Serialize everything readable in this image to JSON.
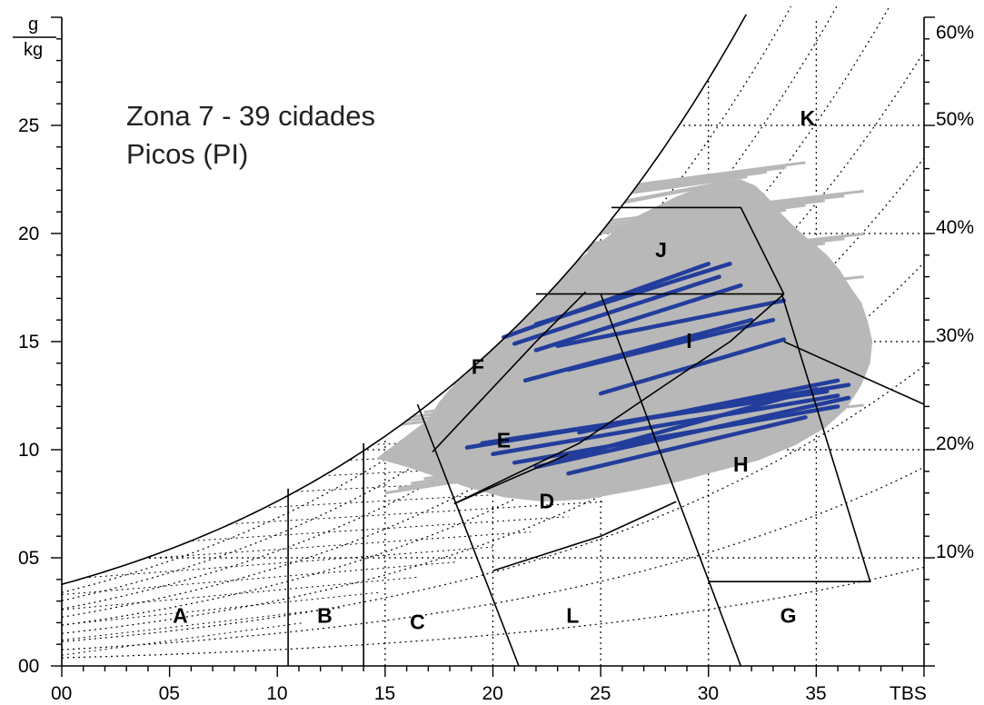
{
  "chart_data": {
    "type": "scatter",
    "title": "Zona 7 - 39 cidades",
    "subtitle": "Picos (PI)",
    "xlabel": "TBS",
    "ylabel_num": "g",
    "ylabel_den": "kg",
    "xlim": [
      0,
      40
    ],
    "ylim": [
      0,
      30
    ],
    "x_ticks": [
      {
        "value": 0,
        "label": "00"
      },
      {
        "value": 5,
        "label": "05"
      },
      {
        "value": 10,
        "label": "10"
      },
      {
        "value": 15,
        "label": "15"
      },
      {
        "value": 20,
        "label": "20"
      },
      {
        "value": 25,
        "label": "25"
      },
      {
        "value": 30,
        "label": "30"
      },
      {
        "value": 35,
        "label": "35"
      }
    ],
    "y_ticks": [
      {
        "value": 0,
        "label": "00"
      },
      {
        "value": 5,
        "label": "05"
      },
      {
        "value": 10,
        "label": "10"
      },
      {
        "value": 15,
        "label": "15"
      },
      {
        "value": 20,
        "label": "20"
      },
      {
        "value": 25,
        "label": "25"
      }
    ],
    "rh_labels": [
      {
        "value": 10,
        "label": "10%"
      },
      {
        "value": 20,
        "label": "20%"
      },
      {
        "value": 30,
        "label": "30%"
      },
      {
        "value": 40,
        "label": "40%"
      },
      {
        "value": 50,
        "label": "50%"
      },
      {
        "value": 60,
        "label": "60%"
      }
    ],
    "zones": [
      {
        "label": "A",
        "x": 5.5,
        "y": 2.0
      },
      {
        "label": "B",
        "x": 12.2,
        "y": 2.0
      },
      {
        "label": "C",
        "x": 16.5,
        "y": 1.7
      },
      {
        "label": "L",
        "x": 23.7,
        "y": 2.0
      },
      {
        "label": "G",
        "x": 33.7,
        "y": 2.0
      },
      {
        "label": "D",
        "x": 22.5,
        "y": 7.3
      },
      {
        "label": "E",
        "x": 20.5,
        "y": 10.1
      },
      {
        "label": "F",
        "x": 19.3,
        "y": 13.5
      },
      {
        "label": "H",
        "x": 31.5,
        "y": 9.0
      },
      {
        "label": "I",
        "x": 29.1,
        "y": 14.7
      },
      {
        "label": "J",
        "x": 27.8,
        "y": 18.9
      },
      {
        "label": "K",
        "x": 34.6,
        "y": 25.0
      }
    ],
    "gray_points": [
      [
        17.0,
        11.4
      ],
      [
        17.5,
        12.2
      ],
      [
        18.0,
        12.8
      ],
      [
        18.8,
        13.5
      ],
      [
        19.5,
        14.3
      ],
      [
        20.3,
        15.0
      ],
      [
        21.0,
        15.8
      ],
      [
        21.8,
        16.6
      ],
      [
        22.5,
        17.6
      ],
      [
        23.5,
        18.4
      ],
      [
        24.5,
        19.2
      ],
      [
        25.5,
        20.0
      ],
      [
        26.5,
        20.7
      ],
      [
        27.5,
        21.2
      ],
      [
        28.5,
        21.7
      ],
      [
        29.5,
        22.1
      ],
      [
        30.5,
        22.4
      ],
      [
        31.5,
        22.5
      ],
      [
        32.2,
        22.2
      ],
      [
        32.8,
        21.6
      ],
      [
        33.4,
        20.9
      ],
      [
        34.1,
        20.2
      ],
      [
        34.8,
        19.6
      ],
      [
        35.5,
        19.0
      ],
      [
        36.1,
        18.3
      ],
      [
        36.6,
        17.5
      ],
      [
        37.1,
        16.8
      ],
      [
        37.4,
        15.9
      ],
      [
        37.6,
        15.0
      ],
      [
        37.5,
        14.0
      ],
      [
        37.1,
        13.0
      ],
      [
        36.4,
        11.9
      ],
      [
        35.4,
        11.0
      ],
      [
        34.0,
        10.2
      ],
      [
        32.3,
        9.5
      ],
      [
        30.4,
        9.0
      ],
      [
        28.5,
        8.5
      ],
      [
        26.5,
        8.1
      ],
      [
        24.3,
        7.7
      ],
      [
        22.3,
        7.6
      ],
      [
        20.5,
        7.8
      ],
      [
        19.0,
        8.2
      ],
      [
        17.5,
        8.7
      ],
      [
        16.0,
        9.2
      ],
      [
        14.6,
        9.6
      ],
      [
        15.2,
        10.2
      ],
      [
        16.0,
        10.7
      ],
      [
        20.0,
        10.5
      ],
      [
        23.0,
        12.0
      ],
      [
        26.0,
        14.0
      ],
      [
        29.0,
        16.0
      ],
      [
        32.0,
        18.0
      ],
      [
        22.0,
        10.0
      ],
      [
        25.0,
        12.0
      ],
      [
        28.0,
        13.0
      ],
      [
        31.0,
        14.5
      ],
      [
        34.0,
        15.5
      ],
      [
        24.0,
        15.0
      ],
      [
        27.0,
        17.5
      ],
      [
        30.0,
        19.5
      ],
      [
        33.0,
        17.0
      ],
      [
        35.0,
        13.5
      ],
      [
        21.0,
        13.0
      ]
    ],
    "blue_segments": [
      [
        [
          20.5,
          15.2
        ],
        [
          30.0,
          18.6
        ]
      ],
      [
        [
          21.0,
          14.9
        ],
        [
          30.5,
          18.0
        ]
      ],
      [
        [
          22.0,
          15.8
        ],
        [
          31.0,
          18.6
        ]
      ],
      [
        [
          22.0,
          14.6
        ],
        [
          31.5,
          17.6
        ]
      ],
      [
        [
          23.0,
          14.8
        ],
        [
          33.5,
          16.9
        ]
      ],
      [
        [
          21.5,
          13.2
        ],
        [
          32.0,
          16.0
        ]
      ],
      [
        [
          23.5,
          13.7
        ],
        [
          33.0,
          16.0
        ]
      ],
      [
        [
          25.0,
          12.6
        ],
        [
          33.5,
          15.1
        ]
      ],
      [
        [
          18.8,
          10.1
        ],
        [
          36.5,
          13.0
        ]
      ],
      [
        [
          19.5,
          10.3
        ],
        [
          35.5,
          12.7
        ]
      ],
      [
        [
          20.0,
          9.8
        ],
        [
          36.0,
          12.5
        ]
      ],
      [
        [
          21.0,
          9.4
        ],
        [
          36.0,
          12.0
        ]
      ],
      [
        [
          22.0,
          9.2
        ],
        [
          36.5,
          12.4
        ]
      ],
      [
        [
          23.0,
          9.5
        ],
        [
          35.0,
          12.8
        ]
      ],
      [
        [
          23.5,
          8.9
        ],
        [
          34.5,
          11.5
        ]
      ],
      [
        [
          24.0,
          10.8
        ],
        [
          36.0,
          13.2
        ]
      ]
    ],
    "colors": {
      "gray": "#b8b8b8",
      "blue": "#233d9c",
      "grid": "#000000"
    }
  }
}
